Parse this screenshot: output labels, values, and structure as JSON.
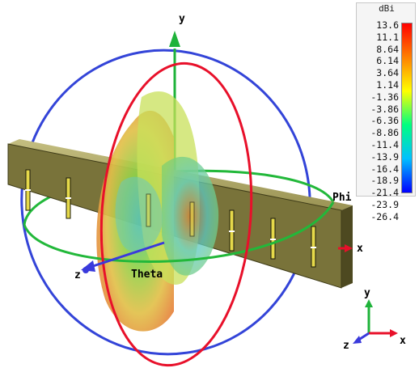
{
  "colorbar": {
    "unit": "dBi",
    "ticks": [
      "13.6",
      "11.1",
      "8.64",
      "6.14",
      "3.64",
      "1.14",
      "-1.36",
      "-3.86",
      "-6.36",
      "-8.86",
      "-11.4",
      "-13.9",
      "-16.4",
      "-18.9",
      "-21.4",
      "-23.9",
      "-26.4"
    ],
    "max": 13.6,
    "min": -26.4,
    "gradient": [
      "#ff0000",
      "#ff8000",
      "#ffff00",
      "#00ff80",
      "#00c0ff",
      "#0000ff"
    ]
  },
  "axes": {
    "y": "y",
    "x": "x",
    "z": "z",
    "phi": "Phi",
    "theta": "Theta"
  },
  "mini_axes": {
    "y": "y",
    "x": "x",
    "z": "z"
  },
  "colors": {
    "x_axis": "#e8102a",
    "y_axis": "#1fb33a",
    "z_axis": "#3a3adc",
    "panel": "#79733a",
    "theta_ring": "#e8102a",
    "phi_ring": "#22b83a",
    "blue_ring": "#3344d8"
  }
}
